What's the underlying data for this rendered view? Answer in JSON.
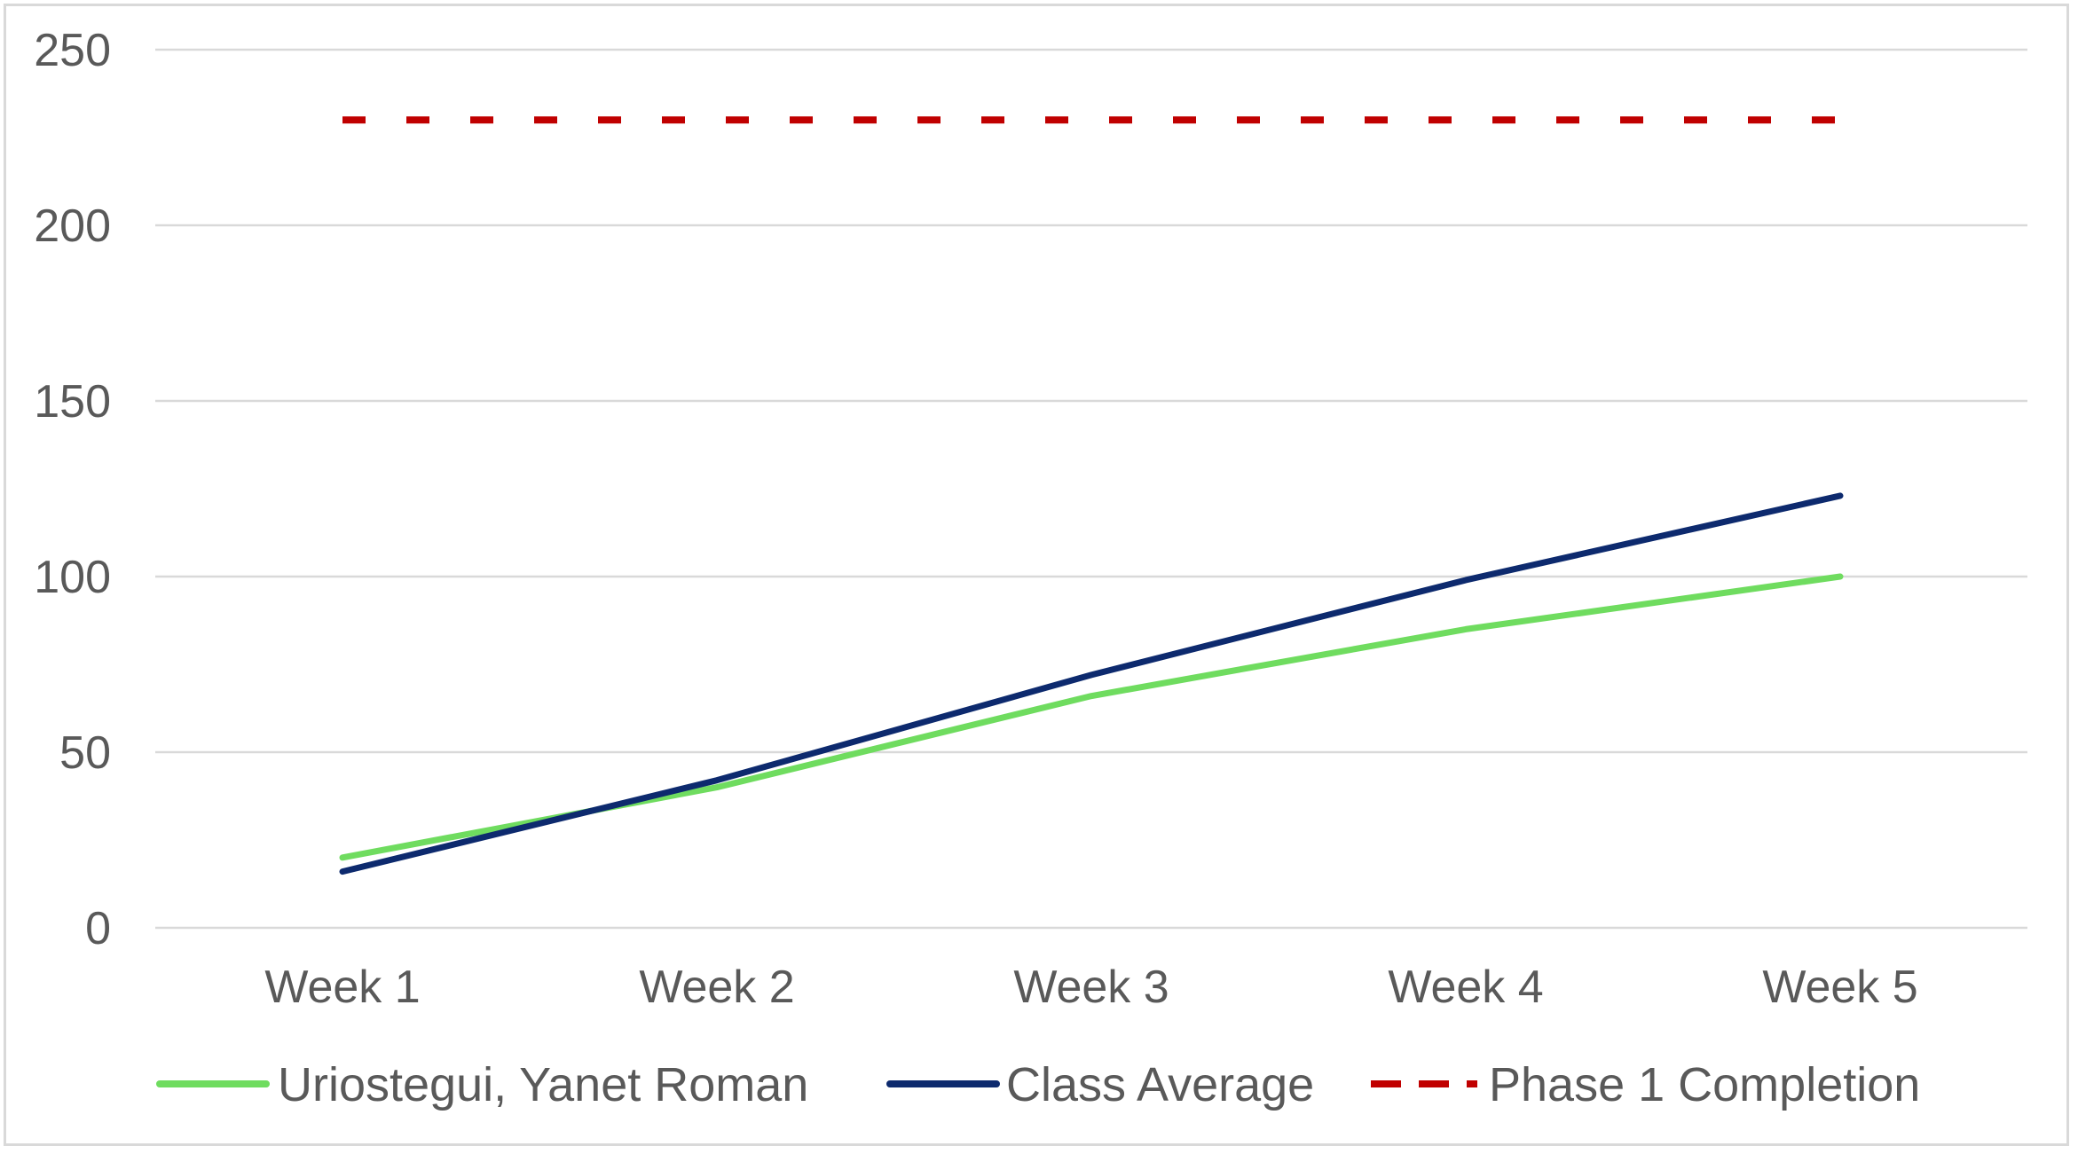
{
  "chart_data": {
    "type": "line",
    "title": "",
    "xlabel": "",
    "ylabel": "",
    "categories": [
      "Week 1",
      "Week 2",
      "Week 3",
      "Week 4",
      "Week 5"
    ],
    "ylim": [
      0,
      250
    ],
    "yticks": [
      0,
      50,
      100,
      150,
      200,
      250
    ],
    "ytick_labels": [
      "0",
      "50",
      "100",
      "150",
      "200",
      "250"
    ],
    "grid": true,
    "legend_position": "bottom",
    "series": [
      {
        "name": "Uriostegui, Yanet Roman",
        "values": [
          20,
          40,
          66,
          85,
          100
        ],
        "color": "#6fdc5f",
        "style": "solid"
      },
      {
        "name": "Class Average",
        "values": [
          16,
          42,
          72,
          99,
          123
        ],
        "color": "#0d2a6e",
        "style": "solid"
      },
      {
        "name": "Phase 1 Completion",
        "values": [
          230,
          230,
          230,
          230,
          230
        ],
        "color": "#c00000",
        "style": "dashed"
      }
    ]
  }
}
